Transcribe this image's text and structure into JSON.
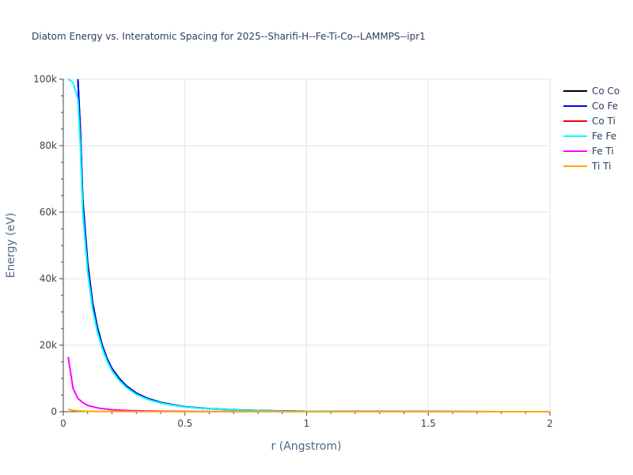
{
  "chart_data": {
    "type": "line",
    "title": "Diatom Energy vs. Interatomic Spacing for 2025--Sharifi-H--Fe-Ti-Co--LAMMPS--ipr1",
    "xlabel": "r (Angstrom)",
    "ylabel": "Energy (eV)",
    "xlim": [
      0,
      2
    ],
    "ylim": [
      0,
      100000
    ],
    "x_ticks": [
      0,
      0.5,
      1,
      1.5,
      2
    ],
    "x_tick_labels": [
      "0",
      "0.5",
      "1",
      "1.5",
      "2"
    ],
    "y_ticks": [
      0,
      20000,
      40000,
      60000,
      80000,
      100000
    ],
    "y_tick_labels": [
      "0",
      "20k",
      "40k",
      "60k",
      "80k",
      "100k"
    ],
    "grid": true,
    "legend_position": "top-right outside",
    "series": [
      {
        "name": "Co Co",
        "color": "#000000",
        "points": [
          [
            0.06,
            100000
          ],
          [
            0.07,
            85000
          ],
          [
            0.08,
            64000
          ],
          [
            0.1,
            45000
          ],
          [
            0.12,
            33000
          ],
          [
            0.14,
            25500
          ],
          [
            0.16,
            20000
          ],
          [
            0.18,
            16000
          ],
          [
            0.2,
            13000
          ],
          [
            0.23,
            10000
          ],
          [
            0.26,
            7700
          ],
          [
            0.3,
            5600
          ],
          [
            0.35,
            3900
          ],
          [
            0.4,
            2800
          ],
          [
            0.45,
            2100
          ],
          [
            0.5,
            1500
          ],
          [
            0.6,
            900
          ],
          [
            0.7,
            550
          ],
          [
            0.8,
            350
          ],
          [
            0.9,
            200
          ],
          [
            1.0,
            120
          ],
          [
            1.2,
            60
          ],
          [
            1.5,
            20
          ],
          [
            2.0,
            0
          ]
        ]
      },
      {
        "name": "Co Fe",
        "color": "#0000ff",
        "points": [
          [
            0.06,
            100000
          ],
          [
            0.07,
            84000
          ],
          [
            0.08,
            63000
          ],
          [
            0.1,
            44000
          ],
          [
            0.12,
            32500
          ],
          [
            0.14,
            25000
          ],
          [
            0.16,
            19700
          ],
          [
            0.18,
            15800
          ],
          [
            0.2,
            12800
          ],
          [
            0.23,
            9800
          ],
          [
            0.26,
            7500
          ],
          [
            0.3,
            5500
          ],
          [
            0.35,
            3800
          ],
          [
            0.4,
            2750
          ],
          [
            0.45,
            2050
          ],
          [
            0.5,
            1450
          ],
          [
            0.6,
            880
          ],
          [
            0.7,
            540
          ],
          [
            0.8,
            340
          ],
          [
            0.9,
            200
          ],
          [
            1.0,
            120
          ],
          [
            1.2,
            60
          ],
          [
            1.5,
            20
          ],
          [
            2.0,
            0
          ]
        ]
      },
      {
        "name": "Co Ti",
        "color": "#ff0000",
        "points": [
          [
            0.06,
            100000
          ],
          [
            0.07,
            83500
          ],
          [
            0.08,
            62500
          ],
          [
            0.1,
            43500
          ],
          [
            0.12,
            32000
          ],
          [
            0.14,
            24700
          ],
          [
            0.16,
            19500
          ],
          [
            0.18,
            15600
          ],
          [
            0.2,
            12600
          ],
          [
            0.23,
            9700
          ],
          [
            0.26,
            7400
          ],
          [
            0.3,
            5400
          ],
          [
            0.35,
            3750
          ],
          [
            0.4,
            2700
          ],
          [
            0.45,
            2000
          ],
          [
            0.5,
            1420
          ],
          [
            0.6,
            860
          ],
          [
            0.7,
            530
          ],
          [
            0.8,
            330
          ],
          [
            0.9,
            190
          ],
          [
            1.0,
            110
          ],
          [
            1.2,
            55
          ],
          [
            1.5,
            20
          ],
          [
            2.0,
            0
          ]
        ]
      },
      {
        "name": "Fe Fe",
        "color": "#00ffff",
        "points": [
          [
            0.02,
            100000
          ],
          [
            0.04,
            99000
          ],
          [
            0.06,
            94000
          ],
          [
            0.07,
            80000
          ],
          [
            0.08,
            60000
          ],
          [
            0.1,
            42000
          ],
          [
            0.12,
            31000
          ],
          [
            0.14,
            24000
          ],
          [
            0.16,
            19000
          ],
          [
            0.18,
            15200
          ],
          [
            0.2,
            12300
          ],
          [
            0.23,
            9400
          ],
          [
            0.26,
            7200
          ],
          [
            0.3,
            5200
          ],
          [
            0.35,
            3600
          ],
          [
            0.4,
            2600
          ],
          [
            0.45,
            1950
          ],
          [
            0.5,
            1400
          ],
          [
            0.6,
            850
          ],
          [
            0.7,
            520
          ],
          [
            0.8,
            330
          ],
          [
            0.9,
            190
          ],
          [
            1.0,
            110
          ],
          [
            1.2,
            55
          ],
          [
            1.5,
            20
          ],
          [
            2.0,
            0
          ]
        ]
      },
      {
        "name": "Fe Ti",
        "color": "#ff00ff",
        "points": [
          [
            0.02,
            16500
          ],
          [
            0.04,
            7000
          ],
          [
            0.06,
            4000
          ],
          [
            0.08,
            2700
          ],
          [
            0.1,
            1900
          ],
          [
            0.12,
            1500
          ],
          [
            0.15,
            1000
          ],
          [
            0.2,
            600
          ],
          [
            0.25,
            400
          ],
          [
            0.3,
            280
          ],
          [
            0.4,
            150
          ],
          [
            0.5,
            90
          ],
          [
            0.7,
            40
          ],
          [
            1.0,
            15
          ],
          [
            1.5,
            5
          ],
          [
            2.0,
            0
          ]
        ]
      },
      {
        "name": "Ti Ti",
        "color": "#ffa500",
        "points": [
          [
            0.02,
            700
          ],
          [
            0.04,
            400
          ],
          [
            0.06,
            250
          ],
          [
            0.08,
            170
          ],
          [
            0.1,
            120
          ],
          [
            0.15,
            70
          ],
          [
            0.2,
            45
          ],
          [
            0.3,
            20
          ],
          [
            0.5,
            8
          ],
          [
            1.0,
            2
          ],
          [
            2.0,
            0
          ]
        ]
      }
    ]
  }
}
